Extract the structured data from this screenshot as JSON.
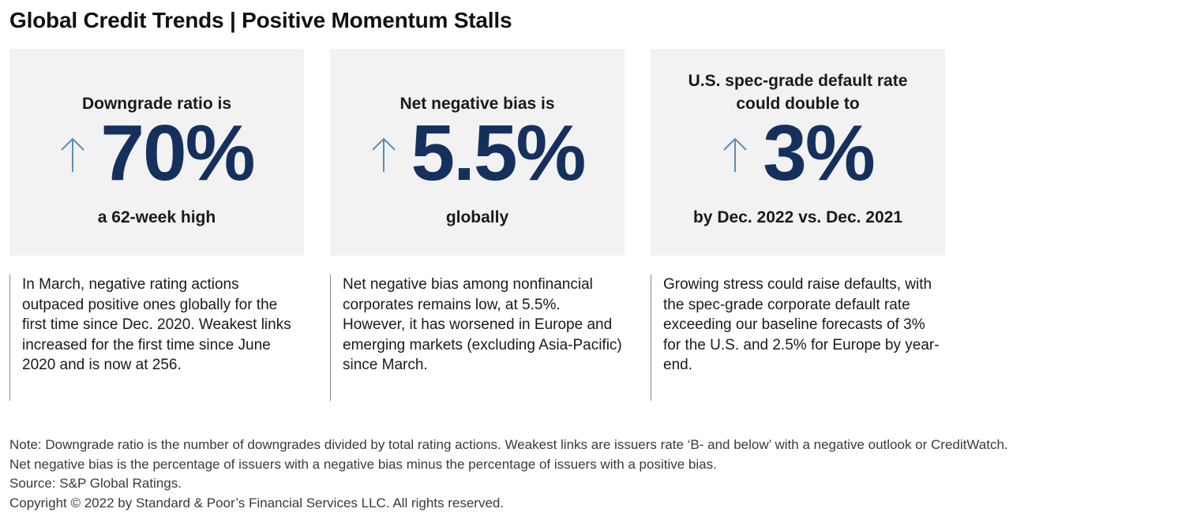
{
  "title": "Global Credit Trends | Positive Momentum Stalls",
  "colors": {
    "value": "#16305e",
    "arrow": "#5b8db8",
    "card_bg": "#f2f2f2"
  },
  "cards": [
    {
      "heading": "Downgrade ratio is",
      "icon": "arrow-up-icon",
      "value": "70%",
      "sub": "a 62-week high",
      "description": "In March, negative rating actions outpaced positive ones globally for the first time since Dec. 2020. Weakest links increased for the first time since June 2020 and is now at 256."
    },
    {
      "heading": "Net negative bias is",
      "icon": "arrow-up-icon",
      "value": "5.5%",
      "sub": "globally",
      "description": "Net negative bias among nonfinancial corporates remains low, at 5.5%. However, it has worsened in Europe and emerging markets (excluding Asia-Pacific) since March."
    },
    {
      "heading": "U.S. spec-grade default rate could double to",
      "icon": "arrow-up-icon",
      "value": "3%",
      "sub": "by Dec. 2022 vs. Dec. 2021",
      "description": "Growing stress could raise defaults, with the spec-grade corporate default rate exceeding our baseline forecasts of 3% for the U.S. and 2.5% for Europe by year-end."
    }
  ],
  "notes": [
    "Note: Downgrade ratio is the number of downgrades divided by total rating actions. Weakest links are issuers rate ‘B- and below’ with a negative outlook or CreditWatch.",
    "Net negative bias is the percentage of issuers with a negative bias minus the percentage of issuers with a positive bias.",
    "Source: S&P Global Ratings.",
    "Copyright © 2022 by Standard & Poor’s Financial Services LLC. All rights reserved."
  ]
}
